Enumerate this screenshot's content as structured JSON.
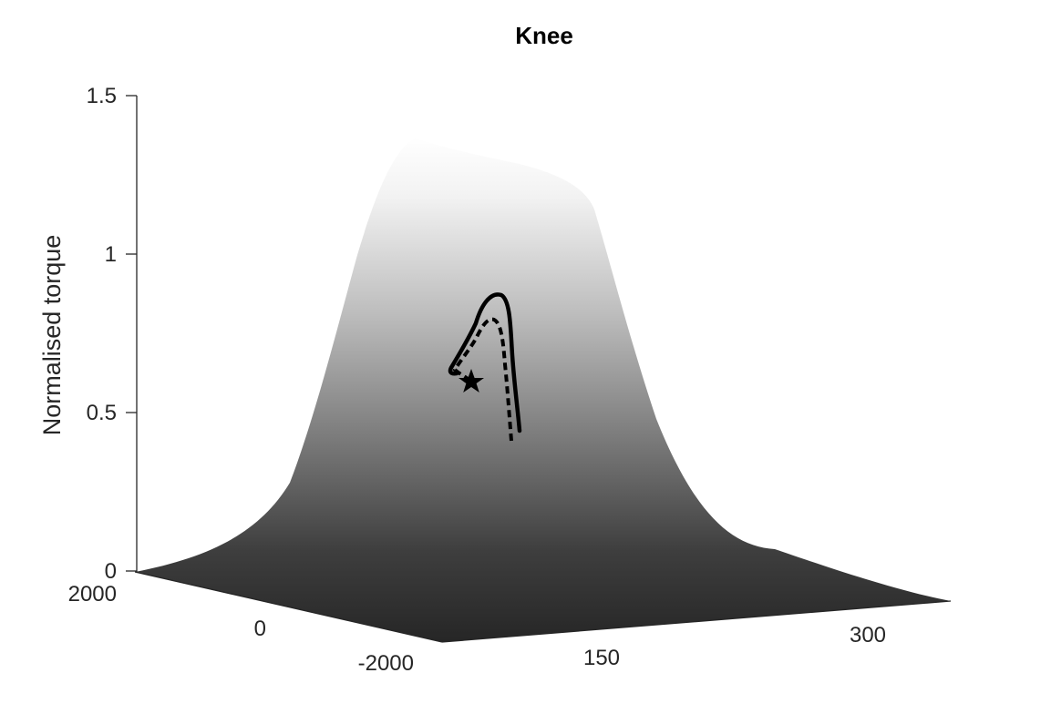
{
  "chart_data": {
    "type": "surface",
    "title": "Knee",
    "xlabel": "",
    "ylabel": "",
    "zlabel": "Normalised torque",
    "z_ticks": [
      "0",
      "0.5",
      "1",
      "1.5"
    ],
    "z_tick_values": [
      0,
      0.5,
      1,
      1.5
    ],
    "y_ticks": [
      "2000",
      "0",
      "-2000"
    ],
    "y_tick_values": [
      2000,
      0,
      -2000
    ],
    "x_ticks": [
      "150",
      "300"
    ],
    "x_tick_values": [
      150,
      300
    ],
    "zlim": [
      0,
      1.5
    ],
    "surface_colormap": "gray",
    "series": [
      {
        "style": "solid"
      },
      {
        "style": "dashed"
      }
    ],
    "markers": [
      {
        "symbol": "star"
      }
    ]
  }
}
